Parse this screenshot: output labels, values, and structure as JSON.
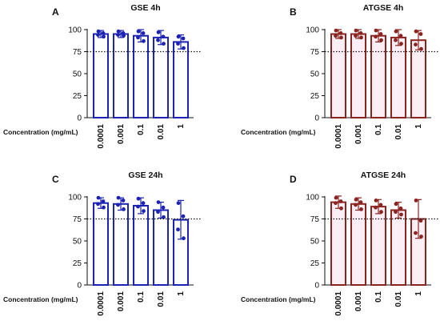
{
  "chart_data": [
    {
      "type": "bar",
      "panel_label": "A",
      "title": "GSE 4h",
      "xlabel": "Concentration (mg/mL)",
      "ylabel": "",
      "categories": [
        "0.0001",
        "0.001",
        "0.1",
        "0.01",
        "1"
      ],
      "ylim": [
        0,
        100
      ],
      "yticks": [
        "0",
        "25",
        "50",
        "75",
        "100"
      ],
      "reference_line": 75,
      "reference_style": "dotted",
      "color": "#1c22b4",
      "fill": "#ffffff",
      "series": [
        {
          "values": [
            95,
            95,
            93,
            91,
            86
          ],
          "errors": [
            4,
            4,
            7,
            8,
            8
          ],
          "points": [
            [
              98,
              96,
              94,
              92
            ],
            [
              98,
              96,
              94,
              93
            ],
            [
              98,
              96,
              91,
              87
            ],
            [
              97,
              92,
              88,
              84
            ],
            [
              92,
              90,
              84,
              79
            ]
          ]
        }
      ]
    },
    {
      "type": "bar",
      "panel_label": "B",
      "title": "ATGSE 4h",
      "xlabel": "Concentration (mg/mL)",
      "ylabel": "",
      "categories": [
        "0.0001",
        "0.001",
        "0.1",
        "0.01",
        "1"
      ],
      "ylim": [
        0,
        100
      ],
      "yticks": [
        "0",
        "25",
        "50",
        "75",
        "100"
      ],
      "reference_line": 75,
      "reference_style": "dotted",
      "color": "#8a2420",
      "fill": "#fbeef5",
      "series": [
        {
          "values": [
            95,
            95,
            93,
            91,
            88
          ],
          "errors": [
            5,
            5,
            7,
            9,
            11
          ],
          "points": [
            [
              99,
              96,
              93,
              91
            ],
            [
              99,
              96,
              93,
              91
            ],
            [
              99,
              95,
              92,
              88
            ],
            [
              98,
              93,
              88,
              84
            ],
            [
              98,
              95,
              83,
              78
            ]
          ]
        }
      ]
    },
    {
      "type": "bar",
      "panel_label": "C",
      "title": "GSE 24h",
      "xlabel": "Concentration (mg/mL)",
      "ylabel": "",
      "categories": [
        "0.0001",
        "0.001",
        "0.1",
        "0.01",
        "1"
      ],
      "ylim": [
        0,
        100
      ],
      "yticks": [
        "0",
        "25",
        "50",
        "75",
        "100"
      ],
      "reference_line": 75,
      "reference_style": "dotted",
      "color": "#1c22b4",
      "fill": "#ffffff",
      "series": [
        {
          "values": [
            93,
            92,
            90,
            85,
            74
          ],
          "errors": [
            6,
            7,
            9,
            9,
            22
          ],
          "points": [
            [
              99,
              95,
              92,
              88
            ],
            [
              99,
              96,
              91,
              86
            ],
            [
              98,
              93,
              89,
              84
            ],
            [
              94,
              88,
              83,
              77
            ],
            [
              93,
              78,
              63,
              53
            ]
          ]
        }
      ]
    },
    {
      "type": "bar",
      "panel_label": "D",
      "title": "ATGSE 24h",
      "xlabel": "Concentration (mg/mL)",
      "ylabel": "",
      "categories": [
        "0.0001",
        "0.001",
        "0.1",
        "0.01",
        "1"
      ],
      "ylim": [
        0,
        100
      ],
      "yticks": [
        "0",
        "25",
        "50",
        "75",
        "100"
      ],
      "reference_line": 75,
      "reference_style": "dotted",
      "color": "#8a2420",
      "fill": "#fbeef5",
      "series": [
        {
          "values": [
            94,
            92,
            89,
            85,
            75
          ],
          "errors": [
            7,
            7,
            8,
            9,
            22
          ],
          "points": [
            [
              99,
              95,
              93,
              87
            ],
            [
              97,
              94,
              91,
              86
            ],
            [
              96,
              91,
              88,
              83
            ],
            [
              92,
              87,
              83,
              80
            ],
            [
              96,
              73,
              59,
              55
            ]
          ]
        }
      ]
    }
  ]
}
